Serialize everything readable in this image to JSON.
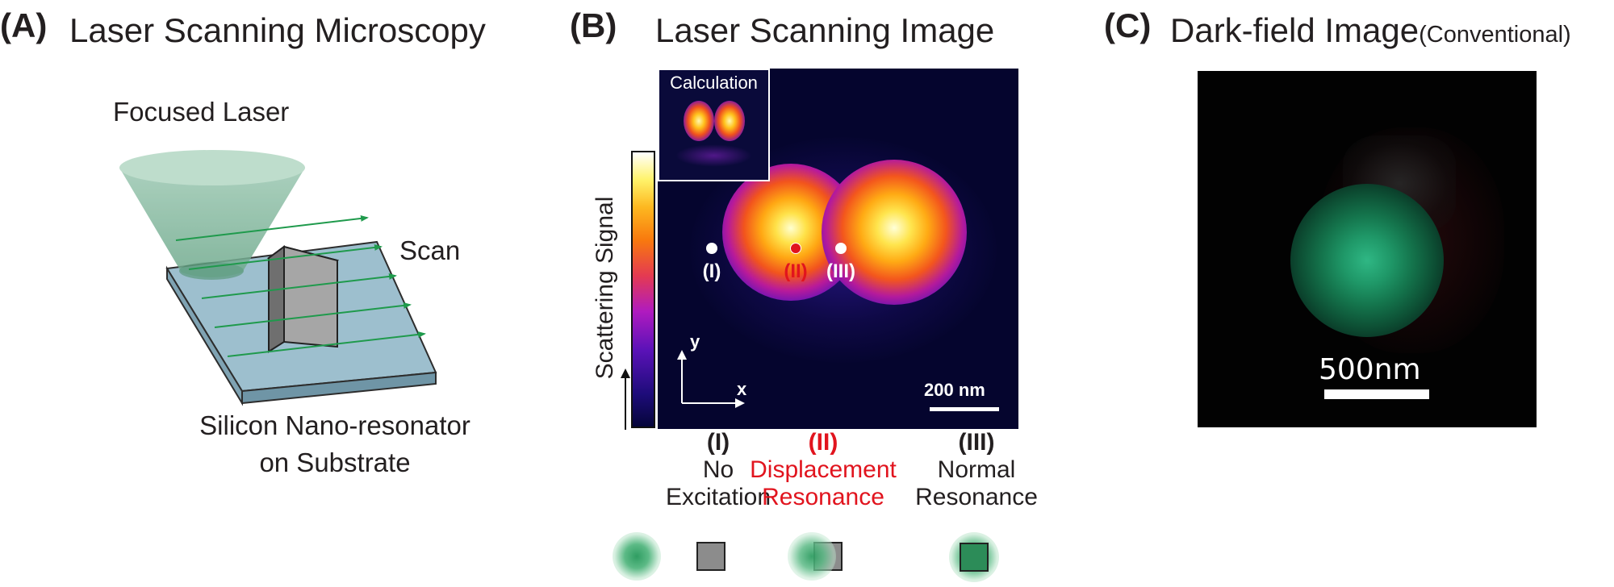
{
  "panel_a": {
    "letter": "(A)",
    "title": "Laser Scanning Microscopy",
    "focused_laser": "Focused Laser",
    "scan": "Scan",
    "substrate_line1": "Silicon Nano-resonator",
    "substrate_line2": "on Substrate"
  },
  "panel_b": {
    "letter": "(B)",
    "title": "Laser Scanning Image",
    "inset_label": "Calculation",
    "colorbar_label": "Scattering Signal",
    "axis_y": "y",
    "axis_x": "x",
    "scale_bar": "200 nm",
    "points": [
      {
        "label": "(I)",
        "color": "#ffffff"
      },
      {
        "label": "(II)",
        "color": "#e1141e"
      },
      {
        "label": "(III)",
        "color": "#ffffff"
      }
    ],
    "states": [
      {
        "numeral": "(I)",
        "line1": "No",
        "line2": "Excitation",
        "color": "#231f20"
      },
      {
        "numeral": "(II)",
        "line1": "Displacement",
        "line2": "Resonance",
        "color": "#e1141e"
      },
      {
        "numeral": "(III)",
        "line1": "Normal",
        "line2": "Resonance",
        "color": "#231f20"
      }
    ]
  },
  "panel_c": {
    "letter": "(C)",
    "title": "Dark-field Image",
    "title_suffix": "(Conventional)",
    "scale_bar": "500nm"
  }
}
